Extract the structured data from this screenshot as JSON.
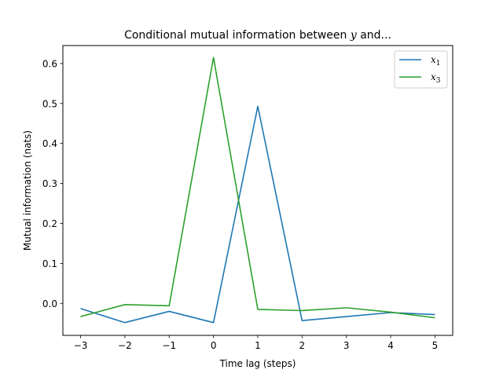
{
  "chart_data": {
    "type": "line",
    "title": "Conditional mutual information between y and...",
    "title_parts": {
      "prefix": "Conditional mutual information between ",
      "var": "y",
      "suffix": " and..."
    },
    "xlabel": "Time lag (steps)",
    "ylabel": "Mutual information (nats)",
    "x": [
      -3,
      -2,
      -1,
      0,
      1,
      2,
      3,
      4,
      5
    ],
    "xticks": [
      -3,
      -2,
      -1,
      0,
      1,
      2,
      3,
      4,
      5
    ],
    "xtick_labels": [
      "−3",
      "−2",
      "−1",
      "0",
      "1",
      "2",
      "3",
      "4",
      "5"
    ],
    "yticks": [
      0.0,
      0.1,
      0.2,
      0.3,
      0.4,
      0.5,
      0.6
    ],
    "ytick_labels": [
      "0.0",
      "0.1",
      "0.2",
      "0.3",
      "0.4",
      "0.5",
      "0.6"
    ],
    "xlim": [
      -3.4,
      5.4
    ],
    "ylim": [
      -0.08,
      0.645
    ],
    "grid": false,
    "legend_position": "top-right",
    "series": [
      {
        "name": "x1",
        "label_base": "x",
        "label_sub": "1",
        "color": "#1f77b4",
        "values": [
          -0.013,
          -0.048,
          -0.02,
          -0.048,
          0.493,
          -0.043,
          -0.033,
          -0.023,
          -0.028
        ]
      },
      {
        "name": "x3",
        "label_base": "x",
        "label_sub": "3",
        "color": "#2ca02c",
        "values": [
          -0.033,
          -0.003,
          -0.006,
          0.615,
          -0.015,
          -0.018,
          -0.011,
          -0.022,
          -0.036
        ]
      }
    ]
  }
}
